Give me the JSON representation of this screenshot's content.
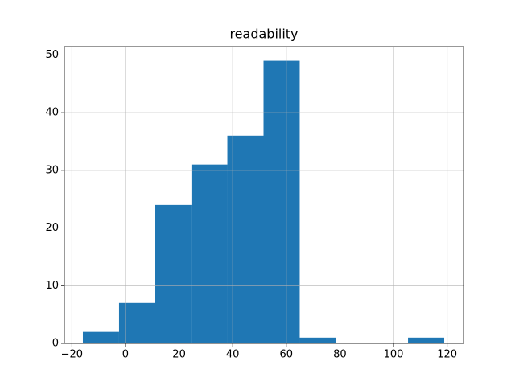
{
  "chart_data": {
    "type": "histogram",
    "title": "readability",
    "bins": [
      -15.9,
      -2.4,
      11.1,
      24.6,
      38.0,
      51.5,
      65.0,
      78.5,
      91.9,
      105.4,
      118.9
    ],
    "values": [
      2,
      7,
      24,
      31,
      36,
      49,
      1,
      0,
      0,
      1
    ],
    "color": "#1f77b4",
    "xlim": [
      -22.8,
      126.1
    ],
    "xticks": [
      {
        "value": -20,
        "label": "−20"
      },
      0,
      20,
      40,
      60,
      80,
      100,
      120
    ],
    "ylim": [
      0,
      51.45
    ],
    "yticks": [
      0,
      10,
      20,
      30,
      40,
      50
    ],
    "grid": true
  }
}
